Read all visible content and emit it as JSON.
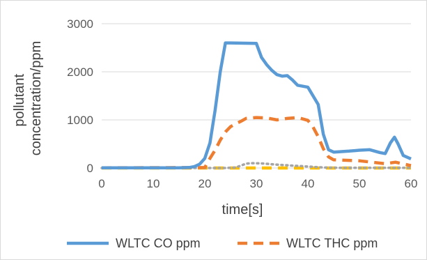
{
  "chart_data": {
    "type": "line",
    "title": "",
    "xlabel": "time[s]",
    "ylabel_lines": [
      "pollutant",
      "concentration/ppm"
    ],
    "xlim": [
      0,
      60
    ],
    "ylim": [
      0,
      3000
    ],
    "x_ticks": [
      "0",
      "10",
      "20",
      "30",
      "40",
      "50",
      "60"
    ],
    "y_ticks": [
      "0",
      "1000",
      "2000",
      "3000"
    ],
    "grid": "horizontal",
    "legend_position": "bottom",
    "series": [
      {
        "name": "WLTC CO ppm",
        "color": "#5b9bd5",
        "dash": "solid",
        "in_legend": true,
        "points": [
          [
            0,
            5
          ],
          [
            15,
            5
          ],
          [
            17,
            10
          ],
          [
            18,
            30
          ],
          [
            19,
            80
          ],
          [
            20,
            200
          ],
          [
            21,
            520
          ],
          [
            22,
            1200
          ],
          [
            23,
            2000
          ],
          [
            24,
            2600
          ],
          [
            25,
            2600
          ],
          [
            30,
            2590
          ],
          [
            31,
            2300
          ],
          [
            32,
            2150
          ],
          [
            33,
            2030
          ],
          [
            34,
            1940
          ],
          [
            35,
            1910
          ],
          [
            36,
            1920
          ],
          [
            37,
            1830
          ],
          [
            38,
            1720
          ],
          [
            39,
            1700
          ],
          [
            40,
            1680
          ],
          [
            41,
            1500
          ],
          [
            42,
            1320
          ],
          [
            43,
            700
          ],
          [
            44,
            380
          ],
          [
            45,
            330
          ],
          [
            48,
            350
          ],
          [
            50,
            370
          ],
          [
            52,
            380
          ],
          [
            54,
            320
          ],
          [
            55,
            300
          ],
          [
            56,
            520
          ],
          [
            56.8,
            640
          ],
          [
            57.5,
            500
          ],
          [
            58.5,
            260
          ],
          [
            60,
            190
          ]
        ]
      },
      {
        "name": "WLTC THC ppm",
        "color": "#ed7d31",
        "dash": "dashed",
        "in_legend": true,
        "points": [
          [
            0,
            5
          ],
          [
            20,
            10
          ],
          [
            21,
            200
          ],
          [
            22,
            370
          ],
          [
            23,
            580
          ],
          [
            24,
            750
          ],
          [
            25,
            860
          ],
          [
            26,
            920
          ],
          [
            27,
            970
          ],
          [
            28,
            1030
          ],
          [
            30,
            1050
          ],
          [
            32,
            1040
          ],
          [
            34,
            1000
          ],
          [
            36,
            1030
          ],
          [
            38,
            1050
          ],
          [
            40,
            990
          ],
          [
            41,
            850
          ],
          [
            42,
            650
          ],
          [
            43,
            400
          ],
          [
            44,
            230
          ],
          [
            45,
            170
          ],
          [
            50,
            150
          ],
          [
            55,
            90
          ],
          [
            57,
            120
          ],
          [
            60,
            50
          ]
        ]
      },
      {
        "name": "",
        "color": "#a5a5a5",
        "dash": "dotted",
        "in_legend": false,
        "points": [
          [
            0,
            0
          ],
          [
            24,
            0
          ],
          [
            26,
            10
          ],
          [
            27,
            50
          ],
          [
            28,
            90
          ],
          [
            29,
            100
          ],
          [
            31,
            95
          ],
          [
            34,
            70
          ],
          [
            37,
            50
          ],
          [
            40,
            30
          ],
          [
            43,
            10
          ],
          [
            46,
            5
          ],
          [
            60,
            5
          ]
        ]
      },
      {
        "name": "",
        "color": "#ffc000",
        "dash": "dashed",
        "in_legend": false,
        "points": [
          [
            0,
            0
          ],
          [
            60,
            0
          ]
        ]
      }
    ]
  }
}
